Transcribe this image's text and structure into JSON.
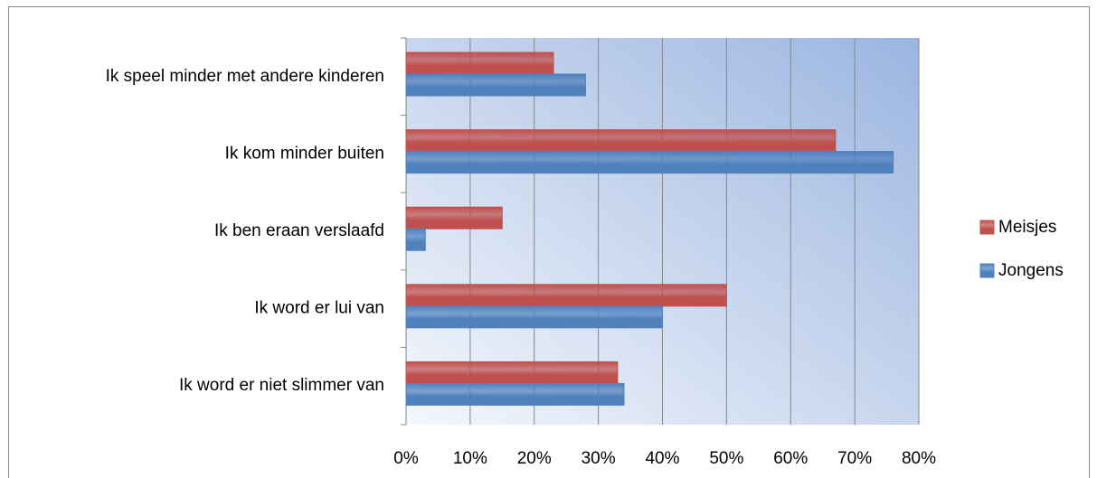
{
  "chart_data": {
    "type": "hbar",
    "categories": [
      "Ik speel minder met andere kinderen",
      "Ik kom minder buiten",
      "Ik ben eraan verslaafd",
      "Ik word er lui van",
      "Ik word er niet slimmer van"
    ],
    "series": [
      {
        "name": "Meisjes",
        "color": "#c0504d",
        "values": [
          23,
          67,
          15,
          50,
          33
        ]
      },
      {
        "name": "Jongens",
        "color": "#4f81bd",
        "values": [
          28,
          76,
          3,
          40,
          34
        ]
      }
    ],
    "xlim": [
      0,
      80
    ],
    "xticks": [
      {
        "value": 0,
        "label": "0%"
      },
      {
        "value": 10,
        "label": "10%"
      },
      {
        "value": 20,
        "label": "20%"
      },
      {
        "value": 30,
        "label": "30%"
      },
      {
        "value": 40,
        "label": "40%"
      },
      {
        "value": 50,
        "label": "50%"
      },
      {
        "value": 60,
        "label": "60%"
      },
      {
        "value": 70,
        "label": "70%"
      },
      {
        "value": 80,
        "label": "80%"
      }
    ],
    "grid": true,
    "legend": "right"
  }
}
